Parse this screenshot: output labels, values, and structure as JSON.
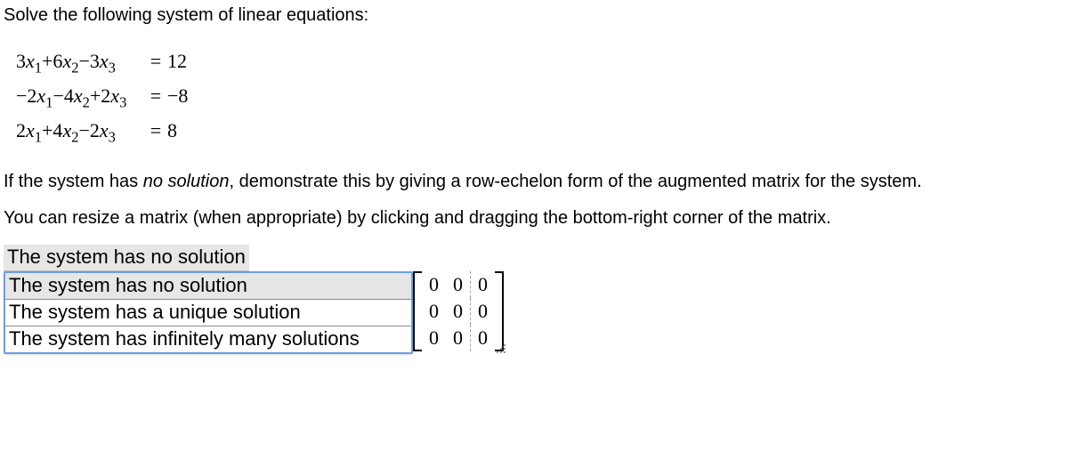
{
  "prompt": "Solve the following system of linear equations:",
  "equations": [
    {
      "coeffs": [
        3,
        6,
        -3
      ],
      "rhs": "12"
    },
    {
      "coeffs": [
        -2,
        -4,
        2
      ],
      "rhs": "−8"
    },
    {
      "coeffs": [
        2,
        4,
        -2
      ],
      "rhs": "8"
    }
  ],
  "instr1_a": "If the system has ",
  "instr1_em": "no solution",
  "instr1_b": ", demonstrate this by giving a row-echelon form of the augmented matrix for the system.",
  "instr2": "You can resize a matrix (when appropriate) by clicking and dragging the bottom-right corner of the matrix.",
  "select": {
    "display": "The system has no solution",
    "options": [
      "The system has no solution",
      "The system has a unique solution",
      "The system has infinitely many solutions"
    ]
  },
  "matrix": {
    "rows": 3,
    "cols": 2,
    "aug_cols": 1,
    "values": [
      [
        "0",
        "0",
        "0"
      ],
      [
        "0",
        "0",
        "0"
      ],
      [
        "0",
        "0",
        "0"
      ]
    ]
  }
}
